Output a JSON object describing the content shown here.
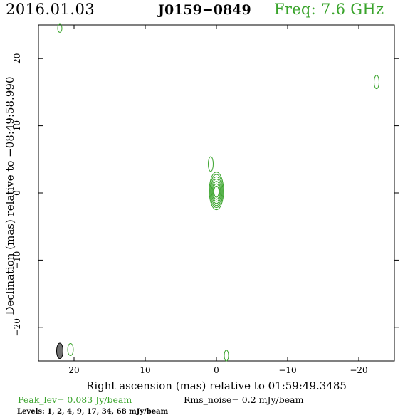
{
  "header": {
    "date": "2016.01.03",
    "source": "J0159−0849",
    "freq": "Freq: 7.6 GHz"
  },
  "footer": {
    "peak": "Peak_lev=  0.083 Jy/beam",
    "rms": "Rms_noise=  0.2 mJy/beam",
    "levels": "Levels:   1,   2,   4,   9,  17,  34,  68 mJy/beam"
  },
  "colors": {
    "contour": "#3aa42c",
    "beam": "#707070",
    "frame": "#000000"
  },
  "chart_data": {
    "type": "contour",
    "xlabel": "Right ascension (mas) relative to 01:59:49.3485",
    "ylabel": "Declination (mas) relative to −08:49:58.990",
    "xlim": [
      25,
      -25
    ],
    "ylim": [
      -25,
      25
    ],
    "xticks": [
      20,
      10,
      0,
      -10,
      -20
    ],
    "yticks": [
      20,
      10,
      0,
      -10,
      -20
    ],
    "xtick_labels": [
      "20",
      "10",
      "0",
      "−10",
      "−20"
    ],
    "ytick_labels": [
      "20",
      "10",
      "0",
      "−10",
      "−20"
    ],
    "levels_mJy_per_beam": [
      1,
      2,
      4,
      9,
      17,
      34,
      68
    ],
    "core": {
      "x": 0.0,
      "y": 0.3,
      "rx_max": 1.0,
      "ry_max": 2.8
    },
    "features": [
      {
        "name": "jet-knot",
        "x": 0.8,
        "y": 4.3,
        "rx": 0.35,
        "ry": 1.1
      },
      {
        "name": "noise-blob-top-left",
        "x": 22.0,
        "y": 24.5,
        "rx": 0.3,
        "ry": 0.6
      },
      {
        "name": "noise-blob-right",
        "x": -22.5,
        "y": 16.5,
        "rx": 0.35,
        "ry": 1.0
      },
      {
        "name": "noise-blob-bottom-left",
        "x": 20.5,
        "y": -23.3,
        "rx": 0.4,
        "ry": 0.9
      },
      {
        "name": "noise-blob-bottom",
        "x": -1.4,
        "y": -24.2,
        "rx": 0.3,
        "ry": 0.8
      }
    ],
    "beam": {
      "x": 22.0,
      "y": -23.5,
      "major": 2.3,
      "minor": 0.9,
      "pa_deg": 0
    }
  }
}
